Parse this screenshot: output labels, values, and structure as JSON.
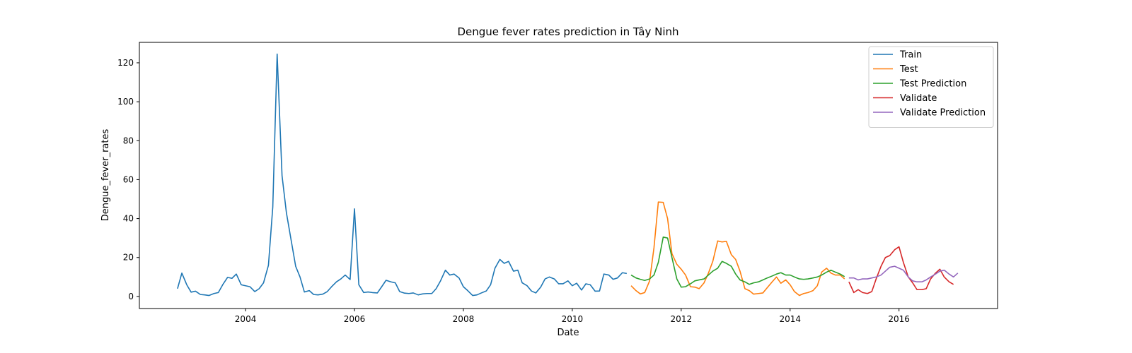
{
  "chart_data": {
    "type": "line",
    "title": "Dengue fever rates prediction in Tây Ninh",
    "x_label": "Date",
    "y_label": "Dengue_fever_rates",
    "xlim": [
      2002.05,
      2017.81
    ],
    "ylim": [
      -6.2,
      130.5
    ],
    "xticks": [
      2004,
      2006,
      2008,
      2010,
      2012,
      2014,
      2016
    ],
    "yticks": [
      0,
      20,
      40,
      60,
      80,
      100,
      120
    ],
    "legend": "upper right",
    "grid": false,
    "series": [
      {
        "name": "Train",
        "color": "#1f77b4",
        "x": [
          2002.75,
          2002.83,
          2002.92,
          2003.0,
          2003.08,
          2003.17,
          2003.25,
          2003.33,
          2003.42,
          2003.5,
          2003.58,
          2003.67,
          2003.75,
          2003.83,
          2003.92,
          2004.0,
          2004.08,
          2004.17,
          2004.25,
          2004.33,
          2004.42,
          2004.5,
          2004.58,
          2004.67,
          2004.75,
          2004.83,
          2004.92,
          2005.0,
          2005.08,
          2005.17,
          2005.25,
          2005.33,
          2005.42,
          2005.5,
          2005.58,
          2005.67,
          2005.75,
          2005.83,
          2005.92,
          2006.0,
          2006.08,
          2006.17,
          2006.25,
          2006.33,
          2006.42,
          2006.5,
          2006.58,
          2006.67,
          2006.75,
          2006.83,
          2006.92,
          2007.0,
          2007.08,
          2007.17,
          2007.25,
          2007.33,
          2007.42,
          2007.5,
          2007.58,
          2007.67,
          2007.75,
          2007.83,
          2007.92,
          2008.0,
          2008.08,
          2008.17,
          2008.25,
          2008.33,
          2008.42,
          2008.5,
          2008.58,
          2008.67,
          2008.75,
          2008.83,
          2008.92,
          2009.0,
          2009.08,
          2009.17,
          2009.25,
          2009.33,
          2009.42,
          2009.5,
          2009.58,
          2009.67,
          2009.75,
          2009.83,
          2009.92,
          2010.0,
          2010.08,
          2010.17,
          2010.25,
          2010.33,
          2010.42,
          2010.5,
          2010.58,
          2010.67,
          2010.75,
          2010.83,
          2010.92,
          2011.0
        ],
        "values": [
          4,
          12,
          6,
          2.2,
          2.7,
          1,
          0.8,
          0.5,
          1.5,
          2,
          6,
          9.8,
          9.3,
          11.5,
          6,
          5.5,
          5,
          2.5,
          4,
          7,
          16,
          46,
          124.5,
          62,
          43,
          30,
          15.5,
          10,
          2.3,
          3,
          1,
          0.8,
          1.2,
          2.5,
          5,
          7.5,
          9,
          11,
          8.7,
          45,
          6,
          2,
          2.3,
          2,
          1.8,
          5,
          8.3,
          7.5,
          7,
          2.5,
          1.7,
          1.5,
          1.8,
          0.8,
          1.3,
          1.5,
          1.5,
          4,
          8,
          13.5,
          11,
          11.5,
          9.5,
          5,
          3,
          0.5,
          0.8,
          1.8,
          2.8,
          6,
          14.5,
          19,
          17,
          18,
          13,
          13.5,
          7,
          5.5,
          2.8,
          1.8,
          4.8,
          9,
          10,
          9,
          6.5,
          6.5,
          8,
          5.5,
          6.8,
          3.3,
          6.5,
          6,
          2.7,
          2.8,
          11.5,
          11,
          8.8,
          9.5,
          12.2,
          11.8
        ]
      },
      {
        "name": "Test",
        "color": "#ff7f0e",
        "x": [
          2011.08,
          2011.17,
          2011.25,
          2011.33,
          2011.42,
          2011.5,
          2011.58,
          2011.67,
          2011.75,
          2011.83,
          2011.92,
          2012.0,
          2012.08,
          2012.17,
          2012.25,
          2012.33,
          2012.42,
          2012.5,
          2012.58,
          2012.67,
          2012.75,
          2012.83,
          2012.92,
          2013.0,
          2013.08,
          2013.17,
          2013.25,
          2013.33,
          2013.42,
          2013.5,
          2013.58,
          2013.67,
          2013.75,
          2013.83,
          2013.92,
          2014.0,
          2014.08,
          2014.17,
          2014.25,
          2014.33,
          2014.42,
          2014.5,
          2014.58,
          2014.67,
          2014.75,
          2014.83,
          2014.92,
          2015.0
        ],
        "values": [
          5.5,
          3,
          1.3,
          2,
          8,
          25,
          48.5,
          48.3,
          40,
          22,
          16.5,
          14,
          11,
          5,
          4.8,
          4,
          7,
          12,
          18,
          28.5,
          28,
          28.3,
          21.5,
          19,
          13,
          4,
          3,
          1.2,
          1.5,
          1.8,
          4.5,
          7.5,
          10,
          6.8,
          8.5,
          6,
          2.5,
          0.5,
          1.5,
          2,
          3,
          5.5,
          12.5,
          14.5,
          12,
          11,
          11,
          9
        ]
      },
      {
        "name": "Test Prediction",
        "color": "#2ca02c",
        "x": [
          2011.08,
          2011.17,
          2011.25,
          2011.33,
          2011.42,
          2011.5,
          2011.58,
          2011.67,
          2011.75,
          2011.83,
          2011.92,
          2012.0,
          2012.08,
          2012.17,
          2012.25,
          2012.33,
          2012.42,
          2012.5,
          2012.58,
          2012.67,
          2012.75,
          2012.83,
          2012.92,
          2013.0,
          2013.08,
          2013.17,
          2013.25,
          2013.33,
          2013.42,
          2013.5,
          2013.58,
          2013.67,
          2013.75,
          2013.83,
          2013.92,
          2014.0,
          2014.08,
          2014.17,
          2014.25,
          2014.33,
          2014.42,
          2014.5,
          2014.58,
          2014.67,
          2014.75,
          2014.83,
          2014.92,
          2015.0
        ],
        "values": [
          11,
          9.5,
          8.8,
          8.2,
          9,
          11,
          17.5,
          30.5,
          30,
          20,
          9,
          4.8,
          5,
          6.5,
          8,
          8.5,
          9,
          11,
          13,
          14.5,
          18,
          17,
          15.5,
          11.5,
          8.5,
          7.5,
          6.2,
          7,
          7.5,
          8.5,
          9.5,
          10.5,
          11.5,
          12.2,
          11,
          11,
          10,
          9,
          8.8,
          9,
          9.5,
          10,
          11,
          12.5,
          13.5,
          12.5,
          11.5,
          10.2
        ]
      },
      {
        "name": "Validate",
        "color": "#d62728",
        "x": [
          2015.08,
          2015.17,
          2015.25,
          2015.33,
          2015.42,
          2015.5,
          2015.58,
          2015.67,
          2015.75,
          2015.83,
          2015.92,
          2016.0,
          2016.08,
          2016.17,
          2016.25,
          2016.33,
          2016.42,
          2016.5,
          2016.58,
          2016.67,
          2016.75,
          2016.83,
          2016.92,
          2017.0
        ],
        "values": [
          7.5,
          2,
          3.5,
          2,
          1.5,
          2.5,
          9,
          15.5,
          20,
          21,
          24,
          25.5,
          17.5,
          10,
          7,
          3.5,
          3.5,
          4,
          9,
          12,
          14,
          10,
          7.5,
          6.2
        ]
      },
      {
        "name": "Validate Prediction",
        "color": "#9467bd",
        "x": [
          2015.08,
          2015.17,
          2015.25,
          2015.33,
          2015.42,
          2015.5,
          2015.58,
          2015.67,
          2015.75,
          2015.83,
          2015.92,
          2016.0,
          2016.08,
          2016.17,
          2016.25,
          2016.33,
          2016.42,
          2016.5,
          2016.58,
          2016.67,
          2016.75,
          2016.83,
          2016.92,
          2017.0,
          2017.08
        ],
        "values": [
          9.5,
          9.5,
          8.5,
          9,
          9,
          9.5,
          10,
          11,
          13,
          15,
          15.5,
          14.5,
          13.5,
          10,
          8,
          7.5,
          7.5,
          8.5,
          10,
          11.5,
          13,
          13.5,
          11.5,
          10,
          12
        ]
      }
    ]
  }
}
